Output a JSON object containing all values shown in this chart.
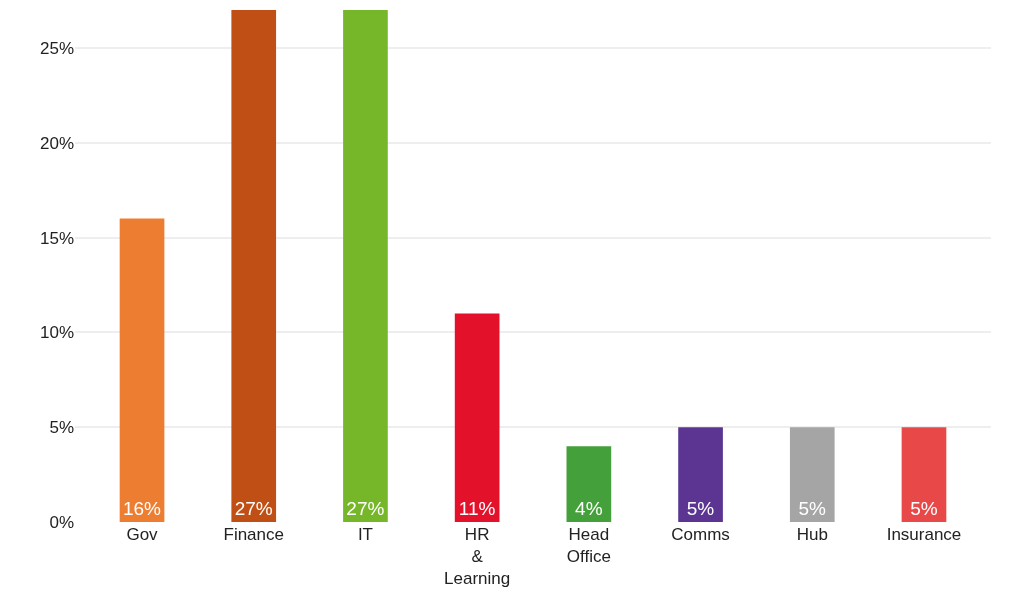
{
  "chart_data": {
    "type": "bar",
    "categories": [
      "Gov",
      "Finance",
      "IT",
      "HR & Learning",
      "Head Office",
      "Comms",
      "Hub",
      "Insurance"
    ],
    "values": [
      16,
      27,
      27,
      11,
      4,
      5,
      5,
      5
    ],
    "colors": [
      "#ed7d31",
      "#c04f15",
      "#76b72a",
      "#e4112b",
      "#43a03a",
      "#5c3592",
      "#a5a5a5",
      "#e84848"
    ],
    "ylim": [
      0,
      27
    ],
    "yticks": [
      {
        "value": 0,
        "label": "0%"
      },
      {
        "value": 5,
        "label": "5%"
      },
      {
        "value": 10,
        "label": "10%"
      },
      {
        "value": 15,
        "label": "15%"
      },
      {
        "value": 20,
        "label": "20%"
      },
      {
        "value": 25,
        "label": "25%"
      }
    ],
    "value_labels": [
      "16%",
      "27%",
      "27%",
      "11%",
      "4%",
      "5%",
      "5%",
      "5%"
    ],
    "grid": "y",
    "legend": false
  }
}
